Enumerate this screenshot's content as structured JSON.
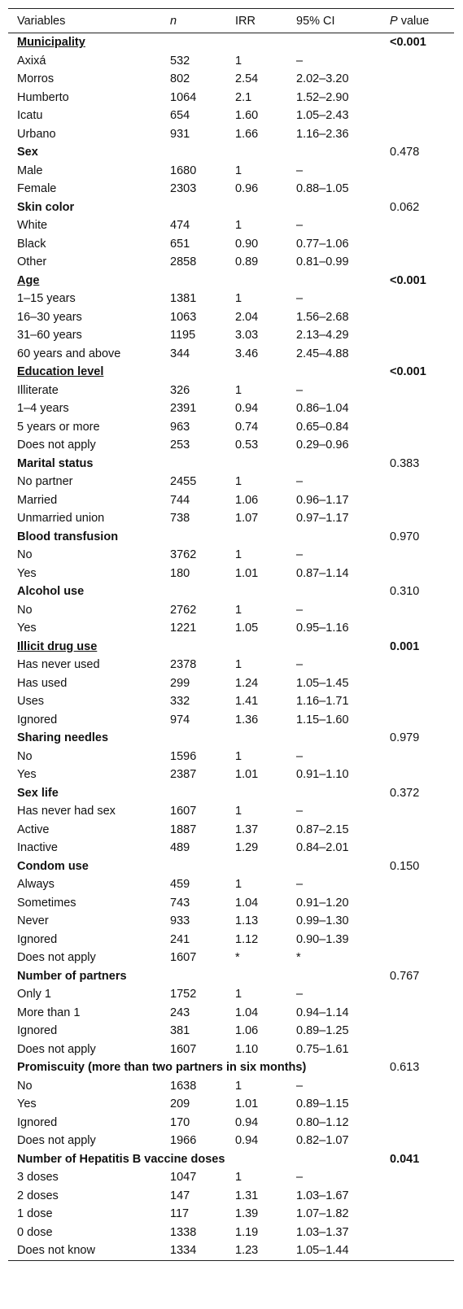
{
  "table": {
    "headers": {
      "variables": "Variables",
      "n": "n",
      "irr": "IRR",
      "ci": "95% CI",
      "p_italic": "P",
      "p_rest": " value"
    },
    "groups": [
      {
        "name": "Municipality",
        "p": "<0.001",
        "significant": true,
        "rows": [
          {
            "label": "Axixá",
            "n": "532",
            "irr": "1",
            "ci": "–"
          },
          {
            "label": "Morros",
            "n": "802",
            "irr": "2.54",
            "ci": "2.02–3.20"
          },
          {
            "label": "Humberto",
            "n": "1064",
            "irr": "2.1",
            "ci": "1.52–2.90"
          },
          {
            "label": "Icatu",
            "n": "654",
            "irr": "1.60",
            "ci": "1.05–2.43"
          },
          {
            "label": "Urbano",
            "n": "931",
            "irr": "1.66",
            "ci": "1.16–2.36"
          }
        ]
      },
      {
        "name": "Sex",
        "p": "0.478",
        "significant": false,
        "rows": [
          {
            "label": "Male",
            "n": "1680",
            "irr": "1",
            "ci": "–"
          },
          {
            "label": "Female",
            "n": "2303",
            "irr": "0.96",
            "ci": "0.88–1.05"
          }
        ]
      },
      {
        "name": "Skin color",
        "p": "0.062",
        "significant": false,
        "rows": [
          {
            "label": "White",
            "n": "474",
            "irr": "1",
            "ci": "–"
          },
          {
            "label": "Black",
            "n": "651",
            "irr": "0.90",
            "ci": "0.77–1.06"
          },
          {
            "label": "Other",
            "n": "2858",
            "irr": "0.89",
            "ci": "0.81–0.99"
          }
        ]
      },
      {
        "name": "Age",
        "p": "<0.001",
        "significant": true,
        "rows": [
          {
            "label": "1–15 years",
            "n": "1381",
            "irr": "1",
            "ci": "–"
          },
          {
            "label": "16–30 years",
            "n": "1063",
            "irr": "2.04",
            "ci": "1.56–2.68"
          },
          {
            "label": "31–60 years",
            "n": "1195",
            "irr": "3.03",
            "ci": "2.13–4.29"
          },
          {
            "label": "60 years and above",
            "n": "344",
            "irr": "3.46",
            "ci": "2.45–4.88"
          }
        ]
      },
      {
        "name": "Education level",
        "p": "<0.001",
        "significant": true,
        "rows": [
          {
            "label": "Illiterate",
            "n": "326",
            "irr": "1",
            "ci": "–"
          },
          {
            "label": "1–4 years",
            "n": "2391",
            "irr": "0.94",
            "ci": "0.86–1.04"
          },
          {
            "label": "5 years or more",
            "n": "963",
            "irr": "0.74",
            "ci": "0.65–0.84"
          },
          {
            "label": "Does not apply",
            "n": "253",
            "irr": "0.53",
            "ci": "0.29–0.96"
          }
        ]
      },
      {
        "name": "Marital status",
        "p": "0.383",
        "significant": false,
        "rows": [
          {
            "label": "No partner",
            "n": "2455",
            "irr": "1",
            "ci": "–"
          },
          {
            "label": "Married",
            "n": "744",
            "irr": "1.06",
            "ci": "0.96–1.17"
          },
          {
            "label": "Unmarried union",
            "n": "738",
            "irr": "1.07",
            "ci": "0.97–1.17"
          }
        ]
      },
      {
        "name": "Blood transfusion",
        "p": "0.970",
        "significant": false,
        "rows": [
          {
            "label": "No",
            "n": "3762",
            "irr": "1",
            "ci": "–"
          },
          {
            "label": "Yes",
            "n": "180",
            "irr": "1.01",
            "ci": "0.87–1.14"
          }
        ]
      },
      {
        "name": "Alcohol use",
        "p": "0.310",
        "significant": false,
        "rows": [
          {
            "label": "No",
            "n": "2762",
            "irr": "1",
            "ci": "–"
          },
          {
            "label": "Yes",
            "n": "1221",
            "irr": "1.05",
            "ci": "0.95–1.16"
          }
        ]
      },
      {
        "name": "Illicit drug use",
        "p": "0.001",
        "significant": true,
        "rows": [
          {
            "label": "Has never used",
            "n": "2378",
            "irr": "1",
            "ci": "–"
          },
          {
            "label": "Has used",
            "n": "299",
            "irr": "1.24",
            "ci": "1.05–1.45"
          },
          {
            "label": "Uses",
            "n": "332",
            "irr": "1.41",
            "ci": "1.16–1.71"
          },
          {
            "label": "Ignored",
            "n": "974",
            "irr": "1.36",
            "ci": "1.15–1.60"
          }
        ]
      },
      {
        "name": "Sharing needles",
        "p": "0.979",
        "significant": false,
        "rows": [
          {
            "label": "No",
            "n": "1596",
            "irr": "1",
            "ci": "–"
          },
          {
            "label": "Yes",
            "n": "2387",
            "irr": "1.01",
            "ci": "0.91–1.10"
          }
        ]
      },
      {
        "name": "Sex life",
        "p": "0.372",
        "significant": false,
        "rows": [
          {
            "label": "Has never had sex",
            "n": "1607",
            "irr": "1",
            "ci": "–"
          },
          {
            "label": "Active",
            "n": "1887",
            "irr": "1.37",
            "ci": "0.87–2.15"
          },
          {
            "label": "Inactive",
            "n": "489",
            "irr": "1.29",
            "ci": "0.84–2.01"
          }
        ]
      },
      {
        "name": "Condom use",
        "p": "0.150",
        "significant": false,
        "rows": [
          {
            "label": "Always",
            "n": "459",
            "irr": "1",
            "ci": "–"
          },
          {
            "label": "Sometimes",
            "n": "743",
            "irr": "1.04",
            "ci": "0.91–1.20"
          },
          {
            "label": "Never",
            "n": "933",
            "irr": "1.13",
            "ci": "0.99–1.30"
          },
          {
            "label": "Ignored",
            "n": "241",
            "irr": "1.12",
            "ci": "0.90–1.39"
          },
          {
            "label": "Does not apply",
            "n": "1607",
            "irr": "*",
            "ci": "*"
          }
        ]
      },
      {
        "name": "Number of partners",
        "p": "0.767",
        "significant": false,
        "rows": [
          {
            "label": "Only 1",
            "n": "1752",
            "irr": "1",
            "ci": "–"
          },
          {
            "label": "More than 1",
            "n": "243",
            "irr": "1.04",
            "ci": "0.94–1.14"
          },
          {
            "label": "Ignored",
            "n": "381",
            "irr": "1.06",
            "ci": "0.89–1.25"
          },
          {
            "label": "Does not apply",
            "n": "1607",
            "irr": "1.10",
            "ci": "0.75–1.61"
          }
        ]
      },
      {
        "name": "Promiscuity (more than two partners in six months)",
        "p": "0.613",
        "significant": false,
        "rows": [
          {
            "label": "No",
            "n": "1638",
            "irr": "1",
            "ci": "–"
          },
          {
            "label": "Yes",
            "n": "209",
            "irr": "1.01",
            "ci": "0.89–1.15"
          },
          {
            "label": "Ignored",
            "n": "170",
            "irr": "0.94",
            "ci": "0.80–1.12"
          },
          {
            "label": "Does not apply",
            "n": "1966",
            "irr": "0.94",
            "ci": "0.82–1.07"
          }
        ]
      },
      {
        "name": "Number of Hepatitis B vaccine doses",
        "p": "0.041",
        "significant": true,
        "underline": false,
        "rows": [
          {
            "label": "3 doses",
            "n": "1047",
            "irr": "1",
            "ci": "–"
          },
          {
            "label": "2 doses",
            "n": "147",
            "irr": "1.31",
            "ci": "1.03–1.67"
          },
          {
            "label": "1 dose",
            "n": "117",
            "irr": "1.39",
            "ci": "1.07–1.82"
          },
          {
            "label": "0 dose",
            "n": "1338",
            "irr": "1.19",
            "ci": "1.03–1.37"
          },
          {
            "label": "Does not know",
            "n": "1334",
            "irr": "1.23",
            "ci": "1.05–1.44"
          }
        ]
      }
    ]
  }
}
